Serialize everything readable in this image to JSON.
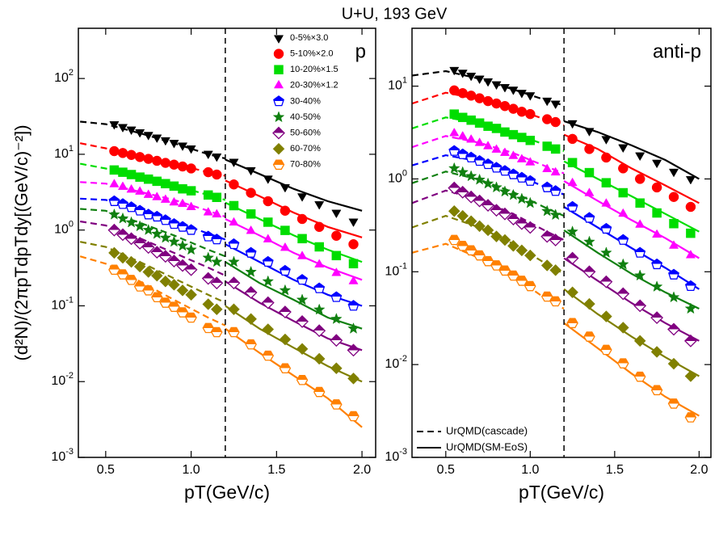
{
  "title": "U+U, 193 GeV",
  "chart_data": [
    {
      "type": "scatter",
      "panel_label": "p",
      "ylabel": "(d²N)/(2πpTdpTdy[(GeV/c)⁻²])",
      "xlabel": "pT(GeV/c)",
      "log_y": true,
      "xlim": [
        0.34,
        2.08
      ],
      "ylim": [
        0.001,
        460
      ],
      "divider": 1.2,
      "legend_loc": "upper right",
      "xticks": [
        0.5,
        {
          "value": 1,
          "label": "1.0"
        },
        1.5,
        {
          "value": 2,
          "label": "2.0"
        }
      ],
      "yticks": [
        {
          "value": 0.001,
          "label": "10^-3"
        },
        {
          "value": 0.01,
          "label": "10^-2"
        },
        {
          "value": 0.1,
          "label": "10^-1"
        },
        {
          "value": 1,
          "label": "10^0"
        },
        {
          "value": 10,
          "label": "10^1"
        },
        {
          "value": 100,
          "label": "10^2"
        }
      ],
      "x": [
        0.55,
        0.6,
        0.65,
        0.7,
        0.75,
        0.8,
        0.85,
        0.9,
        0.95,
        1.0,
        1.1,
        1.15,
        1.25,
        1.35,
        1.45,
        1.55,
        1.65,
        1.75,
        1.85,
        1.95
      ],
      "series": [
        {
          "name": "0-5%×3.0",
          "color": "#000000",
          "marker": "triangle-down",
          "values": [
            25,
            23,
            21.3,
            19.6,
            18.1,
            16.7,
            15.4,
            14.2,
            13.1,
            12,
            10.2,
            9.4,
            8,
            6.2,
            4.8,
            3.7,
            2.8,
            2.2,
            1.7,
            1.3
          ]
        },
        {
          "name": "5-10%×2.0",
          "color": "#ff0000",
          "marker": "circle",
          "values": [
            11,
            10.4,
            9.8,
            9.2,
            8.7,
            8.2,
            7.7,
            7.3,
            6.9,
            6.5,
            5.8,
            5.4,
            4,
            3.1,
            2.4,
            1.8,
            1.4,
            1.1,
            0.84,
            0.65
          ]
        },
        {
          "name": "10-20%×1.5",
          "color": "#00dd00",
          "marker": "square",
          "values": [
            6.2,
            5.8,
            5.4,
            5.0,
            4.7,
            4.4,
            4.1,
            3.8,
            3.5,
            3.3,
            2.9,
            2.7,
            2.1,
            1.63,
            1.27,
            0.99,
            0.77,
            0.6,
            0.46,
            0.36
          ]
        },
        {
          "name": "20-30%×1.2",
          "color": "#ff00ff",
          "marker": "triangle-up",
          "values": [
            4.0,
            3.7,
            3.4,
            3.2,
            2.9,
            2.7,
            2.5,
            2.3,
            2.2,
            2.0,
            1.7,
            1.6,
            1.25,
            0.97,
            0.75,
            0.58,
            0.45,
            0.35,
            0.27,
            0.21
          ]
        },
        {
          "name": "30-40%",
          "color": "#0000ff",
          "marker": "pentagon-half",
          "values": [
            2.4,
            2.2,
            2.0,
            1.8,
            1.6,
            1.5,
            1.35,
            1.2,
            1.1,
            1.0,
            0.82,
            0.75,
            0.65,
            0.5,
            0.38,
            0.29,
            0.22,
            0.17,
            0.13,
            0.1
          ]
        },
        {
          "name": "40-50%",
          "color": "#108010",
          "marker": "star",
          "values": [
            1.6,
            1.42,
            1.26,
            1.12,
            1.0,
            0.89,
            0.79,
            0.7,
            0.62,
            0.55,
            0.43,
            0.38,
            0.38,
            0.28,
            0.21,
            0.16,
            0.12,
            0.089,
            0.067,
            0.05
          ]
        },
        {
          "name": "50-60%",
          "color": "#800080",
          "marker": "diamond-half",
          "values": [
            1.0,
            0.87,
            0.77,
            0.67,
            0.59,
            0.51,
            0.45,
            0.39,
            0.34,
            0.3,
            0.23,
            0.2,
            0.2,
            0.15,
            0.11,
            0.083,
            0.062,
            0.047,
            0.035,
            0.026
          ]
        },
        {
          "name": "60-70%",
          "color": "#808000",
          "marker": "diamond",
          "values": [
            0.5,
            0.43,
            0.38,
            0.33,
            0.28,
            0.25,
            0.21,
            0.19,
            0.16,
            0.14,
            0.105,
            0.09,
            0.09,
            0.067,
            0.049,
            0.036,
            0.027,
            0.02,
            0.015,
            0.011
          ]
        },
        {
          "name": "70-80%",
          "color": "#ff8000",
          "marker": "hexagon-half",
          "values": [
            0.3,
            0.26,
            0.22,
            0.18,
            0.16,
            0.13,
            0.11,
            0.097,
            0.082,
            0.07,
            0.051,
            0.045,
            0.045,
            0.031,
            0.022,
            0.015,
            0.0105,
            0.0073,
            0.005,
            0.0035
          ]
        }
      ],
      "models": [
        {
          "style": "dashed",
          "x": [
            0.35,
            0.5,
            0.7,
            0.9,
            1.1,
            1.2
          ],
          "curves": [
            [
              27,
              25,
              19,
              14,
              10,
              8.8
            ],
            [
              14,
              12,
              9.3,
              7.5,
              5.8,
              5.2
            ],
            [
              7.5,
              6.5,
              5.2,
              3.9,
              2.9,
              2.5
            ],
            [
              4.3,
              4.1,
              3.2,
              2.5,
              1.8,
              1.5
            ],
            [
              2.6,
              2.5,
              1.9,
              1.3,
              0.9,
              0.75
            ],
            [
              1.9,
              1.8,
              1.25,
              0.85,
              0.55,
              0.45
            ],
            [
              1.3,
              1.15,
              0.78,
              0.5,
              0.32,
              0.25
            ],
            [
              0.7,
              0.6,
              0.38,
              0.23,
              0.14,
              0.11
            ],
            [
              0.45,
              0.36,
              0.21,
              0.12,
              0.07,
              0.055
            ]
          ]
        },
        {
          "style": "solid",
          "x": [
            1.2,
            1.4,
            1.6,
            1.8,
            2.0
          ],
          "curves": [
            [
              8.5,
              5.5,
              3.5,
              2.4,
              1.8
            ],
            [
              4.5,
              2.8,
              1.7,
              1.1,
              0.8
            ],
            [
              2.3,
              1.4,
              0.85,
              0.55,
              0.38
            ],
            [
              1.4,
              0.85,
              0.5,
              0.32,
              0.22
            ],
            [
              0.65,
              0.38,
              0.22,
              0.14,
              0.1
            ],
            [
              0.38,
              0.2,
              0.12,
              0.07,
              0.05
            ],
            [
              0.21,
              0.11,
              0.063,
              0.037,
              0.026
            ],
            [
              0.1,
              0.05,
              0.028,
              0.016,
              0.01
            ],
            [
              0.05,
              0.024,
              0.012,
              0.006,
              0.0025
            ]
          ]
        }
      ]
    },
    {
      "type": "scatter",
      "panel_label": "anti-p",
      "xlabel": "pT(GeV/c)",
      "log_y": true,
      "xlim": [
        0.3,
        2.07
      ],
      "ylim": [
        0.001,
        42
      ],
      "divider": 1.2,
      "legend_loc": "lower left",
      "xticks": [
        0.5,
        {
          "value": 1,
          "label": "1.0"
        },
        1.5,
        {
          "value": 2,
          "label": "2.0"
        }
      ],
      "yticks": [
        {
          "value": 0.001,
          "label": "10^-3"
        },
        {
          "value": 0.01,
          "label": "10^-2"
        },
        {
          "value": 0.1,
          "label": "10^-1"
        },
        {
          "value": 1,
          "label": "10^0"
        },
        {
          "value": 10,
          "label": "10^1"
        }
      ],
      "x": [
        0.55,
        0.6,
        0.65,
        0.7,
        0.75,
        0.8,
        0.85,
        0.9,
        0.95,
        1.0,
        1.1,
        1.15,
        1.25,
        1.35,
        1.45,
        1.55,
        1.65,
        1.75,
        1.85,
        1.95
      ],
      "series": [
        {
          "color": "#000000",
          "marker": "triangle-down",
          "values": [
            15,
            14,
            13,
            12.1,
            11.3,
            10.5,
            9.8,
            9.2,
            8.5,
            8.0,
            7.0,
            6.5,
            4,
            3.3,
            2.7,
            2.2,
            1.8,
            1.5,
            1.2,
            1.0
          ]
        },
        {
          "color": "#ff0000",
          "marker": "circle",
          "values": [
            9,
            8.4,
            7.9,
            7.4,
            6.9,
            6.5,
            6.1,
            5.7,
            5.3,
            5.0,
            4.4,
            4.1,
            2.7,
            2.1,
            1.7,
            1.3,
            1.0,
            0.81,
            0.64,
            0.5
          ]
        },
        {
          "color": "#00dd00",
          "marker": "square",
          "values": [
            5.0,
            4.6,
            4.3,
            4.0,
            3.7,
            3.5,
            3.2,
            3.0,
            2.8,
            2.6,
            2.25,
            2.1,
            1.5,
            1.17,
            0.91,
            0.71,
            0.55,
            0.43,
            0.33,
            0.26
          ]
        },
        {
          "color": "#ff00ff",
          "marker": "triangle-up",
          "values": [
            3.1,
            2.86,
            2.64,
            2.43,
            2.24,
            2.06,
            1.9,
            1.76,
            1.62,
            1.5,
            1.27,
            1.17,
            0.9,
            0.7,
            0.54,
            0.42,
            0.32,
            0.25,
            0.19,
            0.15
          ]
        },
        {
          "color": "#0000ff",
          "marker": "pentagon-half",
          "values": [
            2.0,
            1.84,
            1.7,
            1.56,
            1.44,
            1.32,
            1.22,
            1.12,
            1.03,
            0.95,
            0.81,
            0.74,
            0.5,
            0.38,
            0.29,
            0.22,
            0.16,
            0.12,
            0.093,
            0.07
          ]
        },
        {
          "color": "#108010",
          "marker": "star",
          "values": [
            1.3,
            1.18,
            1.07,
            0.98,
            0.89,
            0.81,
            0.73,
            0.67,
            0.61,
            0.55,
            0.45,
            0.41,
            0.27,
            0.21,
            0.16,
            0.12,
            0.091,
            0.069,
            0.053,
            0.04
          ]
        },
        {
          "color": "#800080",
          "marker": "diamond-half",
          "values": [
            0.8,
            0.72,
            0.64,
            0.58,
            0.52,
            0.46,
            0.42,
            0.37,
            0.33,
            0.3,
            0.24,
            0.22,
            0.14,
            0.1,
            0.078,
            0.058,
            0.043,
            0.032,
            0.024,
            0.018
          ]
        },
        {
          "color": "#808000",
          "marker": "diamond",
          "values": [
            0.45,
            0.4,
            0.35,
            0.31,
            0.28,
            0.24,
            0.22,
            0.19,
            0.17,
            0.15,
            0.117,
            0.104,
            0.06,
            0.045,
            0.033,
            0.025,
            0.018,
            0.0137,
            0.0102,
            0.0075
          ]
        },
        {
          "color": "#ff8000",
          "marker": "hexagon-half",
          "values": [
            0.22,
            0.19,
            0.17,
            0.15,
            0.13,
            0.117,
            0.103,
            0.091,
            0.08,
            0.07,
            0.054,
            0.048,
            0.028,
            0.02,
            0.0144,
            0.0103,
            0.0074,
            0.0053,
            0.0038,
            0.0027
          ]
        }
      ],
      "models": [
        {
          "name": "UrQMD(cascade)",
          "style": "dashed",
          "x": [
            0.3,
            0.5,
            0.7,
            0.9,
            1.1,
            1.2
          ],
          "curves": [
            [
              13,
              14.5,
              12,
              9.2,
              7,
              6.2
            ],
            [
              6.5,
              8.5,
              7.2,
              5.8,
              4.3,
              3.8
            ],
            [
              3.5,
              4.6,
              4.0,
              3.1,
              2.3,
              2.0
            ],
            [
              2.2,
              2.9,
              2.45,
              1.9,
              1.35,
              1.15
            ],
            [
              1.4,
              1.8,
              1.55,
              1.15,
              0.8,
              0.68
            ],
            [
              0.9,
              1.2,
              0.98,
              0.72,
              0.48,
              0.4
            ],
            [
              0.55,
              0.75,
              0.6,
              0.42,
              0.27,
              0.22
            ],
            [
              0.3,
              0.4,
              0.3,
              0.2,
              0.12,
              0.095
            ],
            [
              0.16,
              0.2,
              0.14,
              0.09,
              0.05,
              0.04
            ]
          ]
        },
        {
          "name": "UrQMD(SM-EoS)",
          "style": "solid",
          "x": [
            1.2,
            1.4,
            1.6,
            1.8,
            2.0
          ],
          "curves": [
            [
              4.2,
              3.2,
              2.3,
              1.6,
              1.0
            ],
            [
              3.0,
              2.1,
              1.3,
              0.85,
              0.55
            ],
            [
              1.55,
              1.0,
              0.65,
              0.42,
              0.27
            ],
            [
              0.95,
              0.58,
              0.36,
              0.23,
              0.14
            ],
            [
              0.5,
              0.3,
              0.18,
              0.11,
              0.065
            ],
            [
              0.28,
              0.16,
              0.095,
              0.06,
              0.04
            ],
            [
              0.14,
              0.08,
              0.046,
              0.028,
              0.018
            ],
            [
              0.065,
              0.035,
              0.02,
              0.012,
              0.0075
            ],
            [
              0.028,
              0.015,
              0.008,
              0.0045,
              0.0028
            ]
          ]
        }
      ]
    }
  ]
}
